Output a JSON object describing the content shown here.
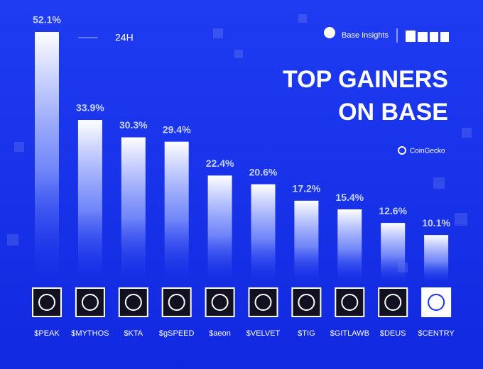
{
  "chart_data": {
    "type": "bar",
    "title": [
      "TOP GAINERS",
      "ON BASE"
    ],
    "period": "24H",
    "brand": "Base Insights",
    "source": "CoinGecko",
    "categories": [
      "$PEAK",
      "$MYTHOS",
      "$KTA",
      "$gSPEED",
      "$aeon",
      "$VELVET",
      "$TIG",
      "$GITLAWB",
      "$DEUS",
      "$CENTRY"
    ],
    "values": [
      52.1,
      33.9,
      30.3,
      29.4,
      22.4,
      20.6,
      17.2,
      15.4,
      12.6,
      10.1
    ],
    "value_labels": [
      "52.1%",
      "33.9%",
      "30.3%",
      "29.4%",
      "22.4%",
      "20.6%",
      "17.2%",
      "15.4%",
      "12.6%",
      "10.1%"
    ],
    "color": "#ffffff"
  }
}
